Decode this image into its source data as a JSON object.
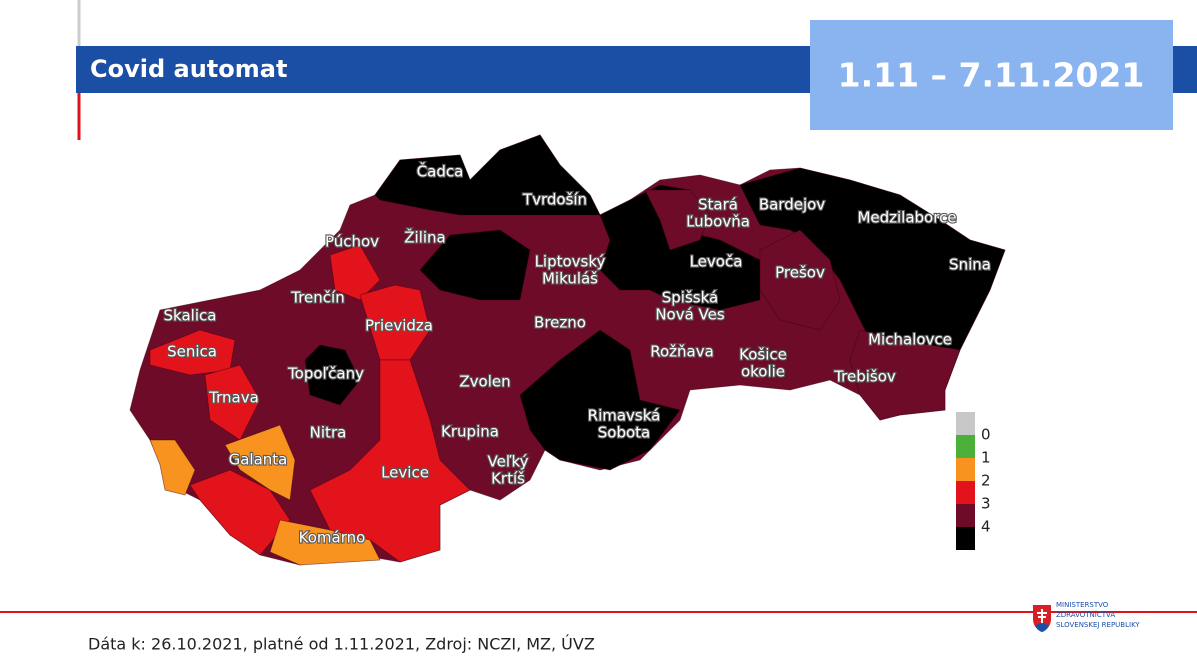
{
  "header": {
    "title": "Covid automat",
    "date_range": "1.11 – 7.11.2021"
  },
  "map": {
    "districts": [
      {
        "name": [
          "Čadca"
        ]
      },
      {
        "name": [
          "Tvrdošín"
        ]
      },
      {
        "name": [
          "Púchov"
        ]
      },
      {
        "name": [
          "Žilina"
        ]
      },
      {
        "name": [
          "Liptovský",
          "Mikuláš"
        ]
      },
      {
        "name": [
          "Stará",
          "Ľubovňa"
        ]
      },
      {
        "name": [
          "Bardejov"
        ]
      },
      {
        "name": [
          "Medzilaborce"
        ]
      },
      {
        "name": [
          "Levoča"
        ]
      },
      {
        "name": [
          "Prešov"
        ]
      },
      {
        "name": [
          "Snina"
        ]
      },
      {
        "name": [
          "Trenčín"
        ]
      },
      {
        "name": [
          "Skalica"
        ]
      },
      {
        "name": [
          "Spišská",
          "Nová Ves"
        ]
      },
      {
        "name": [
          "Prievidza"
        ]
      },
      {
        "name": [
          "Brezno"
        ]
      },
      {
        "name": [
          "Michalovce"
        ]
      },
      {
        "name": [
          "Senica"
        ]
      },
      {
        "name": [
          "Rožňava"
        ]
      },
      {
        "name": [
          "Košice",
          "okolie"
        ]
      },
      {
        "name": [
          "Topoľčany"
        ]
      },
      {
        "name": [
          "Trebišov"
        ]
      },
      {
        "name": [
          "Zvolen"
        ]
      },
      {
        "name": [
          "Trnava"
        ]
      },
      {
        "name": [
          "Rimavská",
          "Sobota"
        ]
      },
      {
        "name": [
          "Nitra"
        ]
      },
      {
        "name": [
          "Krupina"
        ]
      },
      {
        "name": [
          "Galanta"
        ]
      },
      {
        "name": [
          "Veľký",
          "Krtíš"
        ]
      },
      {
        "name": [
          "Levice"
        ]
      },
      {
        "name": [
          "Komárno"
        ]
      }
    ],
    "legend": [
      {
        "label": "0",
        "color": "#c8c8c8"
      },
      {
        "label": "1",
        "color": "#4caf3a"
      },
      {
        "label": "2",
        "color": "#f7931e"
      },
      {
        "label": "3",
        "color": "#e3131b"
      },
      {
        "label": "4",
        "color": "#6e0b29"
      },
      {
        "label": null,
        "color": "#000000"
      }
    ]
  },
  "footer": {
    "source": "Dáta k: 26.10.2021, platné od 1.11.2021, Zdroj: NCZI, MZ, ÚVZ",
    "ministry": [
      "MINISTERSTVO",
      "ZDRAVOTNÍCTVA",
      "SLOVENSKEJ REPUBLIKY"
    ]
  }
}
